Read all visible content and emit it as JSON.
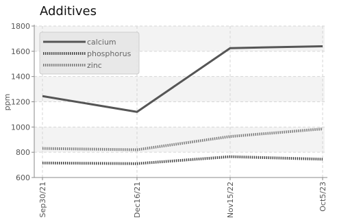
{
  "chart_data": {
    "type": "line",
    "title": "Additives",
    "xlabel": "",
    "ylabel": "ppm",
    "categories": [
      "Sep30/21",
      "Dec16/21",
      "Nov15/22",
      "Oct5/23"
    ],
    "ylim": [
      600,
      1800
    ],
    "yticks": [
      600,
      800,
      1000,
      1200,
      1400,
      1600,
      1800
    ],
    "grid": true,
    "legend_position": "top-left",
    "series": [
      {
        "name": "calcium",
        "values": [
          1245,
          1120,
          1625,
          1640
        ],
        "color": "#555555",
        "style": "solid"
      },
      {
        "name": "phosphorus",
        "values": [
          715,
          710,
          765,
          745
        ],
        "color": "#444444",
        "style": "dotted"
      },
      {
        "name": "zinc",
        "values": [
          830,
          820,
          925,
          985
        ],
        "color": "#777777",
        "style": "dotted"
      }
    ]
  }
}
